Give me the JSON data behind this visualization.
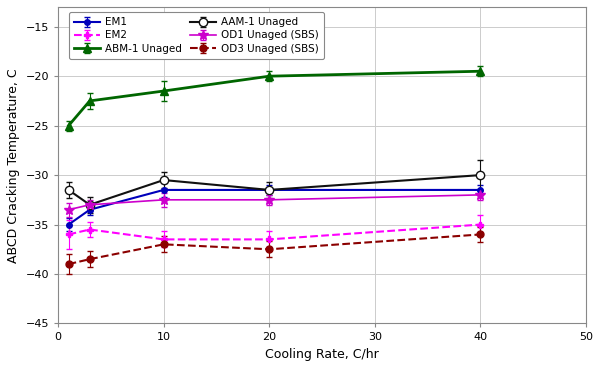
{
  "x": [
    1,
    3,
    10,
    20,
    40
  ],
  "series": [
    {
      "label": "EM1",
      "y": [
        -35.0,
        -33.5,
        -31.5,
        -31.5,
        -31.5
      ],
      "yerr": [
        0.7,
        0.5,
        0.7,
        0.5,
        0.5
      ],
      "color": "#0000bb",
      "linestyle": "-",
      "marker": "o",
      "markerfacecolor": "#0000bb",
      "markersize": 4,
      "linewidth": 1.5
    },
    {
      "label": "EM2",
      "y": [
        -36.0,
        -35.5,
        -36.5,
        -36.5,
        -35.0
      ],
      "yerr": [
        1.5,
        0.8,
        0.8,
        0.8,
        1.0
      ],
      "color": "#ff00ff",
      "linestyle": "--",
      "marker": "P",
      "markerfacecolor": "#ff00ff",
      "markersize": 5,
      "linewidth": 1.5
    },
    {
      "label": "ABM-1 Unaged",
      "y": [
        -25.0,
        -22.5,
        -21.5,
        -20.0,
        -19.5
      ],
      "yerr": [
        0.5,
        0.8,
        1.0,
        0.5,
        0.5
      ],
      "color": "#006600",
      "linestyle": "-",
      "marker": "^",
      "markerfacecolor": "#006600",
      "markersize": 6,
      "linewidth": 2.0
    },
    {
      "label": "AAM-1 Unaged",
      "y": [
        -31.5,
        -33.0,
        -30.5,
        -31.5,
        -30.0
      ],
      "yerr": [
        0.8,
        0.8,
        0.8,
        0.8,
        1.5
      ],
      "color": "#111111",
      "linestyle": "-",
      "marker": "o",
      "markerfacecolor": "#ffffff",
      "markersize": 6,
      "linewidth": 1.5
    },
    {
      "label": "OD1 Unaged (SBS)",
      "y": [
        -33.5,
        -33.0,
        -32.5,
        -32.5,
        -32.0
      ],
      "yerr": [
        0.7,
        0.5,
        0.7,
        0.5,
        0.5
      ],
      "color": "#cc00cc",
      "linestyle": "-",
      "marker": "*",
      "markerfacecolor": "#cc00cc",
      "markersize": 7,
      "linewidth": 1.2
    },
    {
      "label": "OD3 Unaged (SBS)",
      "y": [
        -39.0,
        -38.5,
        -37.0,
        -37.5,
        -36.0
      ],
      "yerr": [
        1.0,
        0.8,
        0.8,
        0.8,
        0.8
      ],
      "color": "#8b0000",
      "linestyle": "--",
      "marker": "o",
      "markerfacecolor": "#8b0000",
      "markersize": 5,
      "linewidth": 1.5
    }
  ],
  "xlabel": "Cooling Rate, C/hr",
  "ylabel": "ABCD Cracking Temperature, C",
  "xlim": [
    0,
    50
  ],
  "ylim": [
    -45,
    -13
  ],
  "xticks": [
    0,
    10,
    20,
    30,
    40,
    50
  ],
  "yticks": [
    -45,
    -40,
    -35,
    -30,
    -25,
    -20,
    -15
  ],
  "grid": true,
  "legend_cols": 2,
  "background_color": "#ffffff",
  "axis_fontsize": 9,
  "tick_fontsize": 8,
  "legend_fontsize": 7.5
}
